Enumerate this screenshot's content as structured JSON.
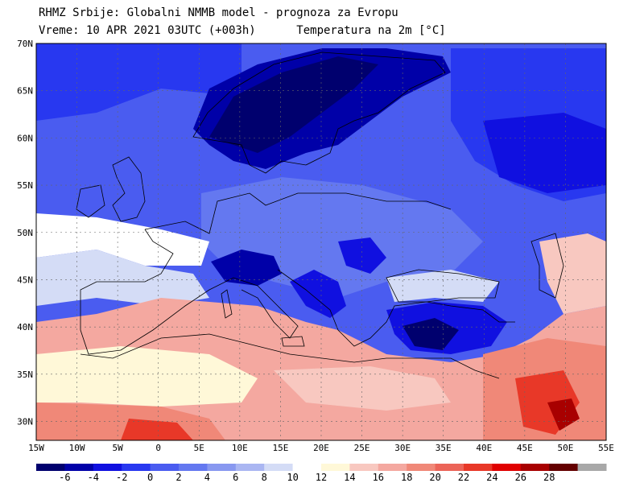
{
  "header": {
    "line1": "RHMZ Srbije: Globalni NMMB model - prognoza za Evropu",
    "line2": "Vreme: 10 APR 2021 03UTC (+003h)      Temperatura na 2m [°C]"
  },
  "map": {
    "lat_labels": [
      "70N",
      "65N",
      "60N",
      "55N",
      "50N",
      "45N",
      "40N",
      "35N",
      "30N"
    ],
    "lon_labels": [
      "15W",
      "10W",
      "5W",
      "0",
      "5E",
      "10E",
      "15E",
      "20E",
      "25E",
      "30E",
      "35E",
      "40E",
      "45E",
      "50E",
      "55E"
    ],
    "lat_range": [
      28,
      70
    ],
    "lon_range": [
      -15,
      55
    ]
  },
  "colorbar": {
    "labels": [
      "-6",
      "-4",
      "-2",
      "0",
      "2",
      "4",
      "6",
      "8",
      "10",
      "12",
      "14",
      "16",
      "18",
      "20",
      "22",
      "24",
      "26",
      "28"
    ],
    "colors": [
      "#00006e",
      "#0000a8",
      "#1010e0",
      "#2838f0",
      "#4a5cf0",
      "#6478f0",
      "#8898f0",
      "#aab6f2",
      "#d4dcf6",
      "#ffffff",
      "#fff8d8",
      "#f8c8c0",
      "#f4a8a0",
      "#f08878",
      "#ec6458",
      "#e83828",
      "#e00000",
      "#a80000",
      "#640000",
      "#a8a8a8"
    ]
  }
}
